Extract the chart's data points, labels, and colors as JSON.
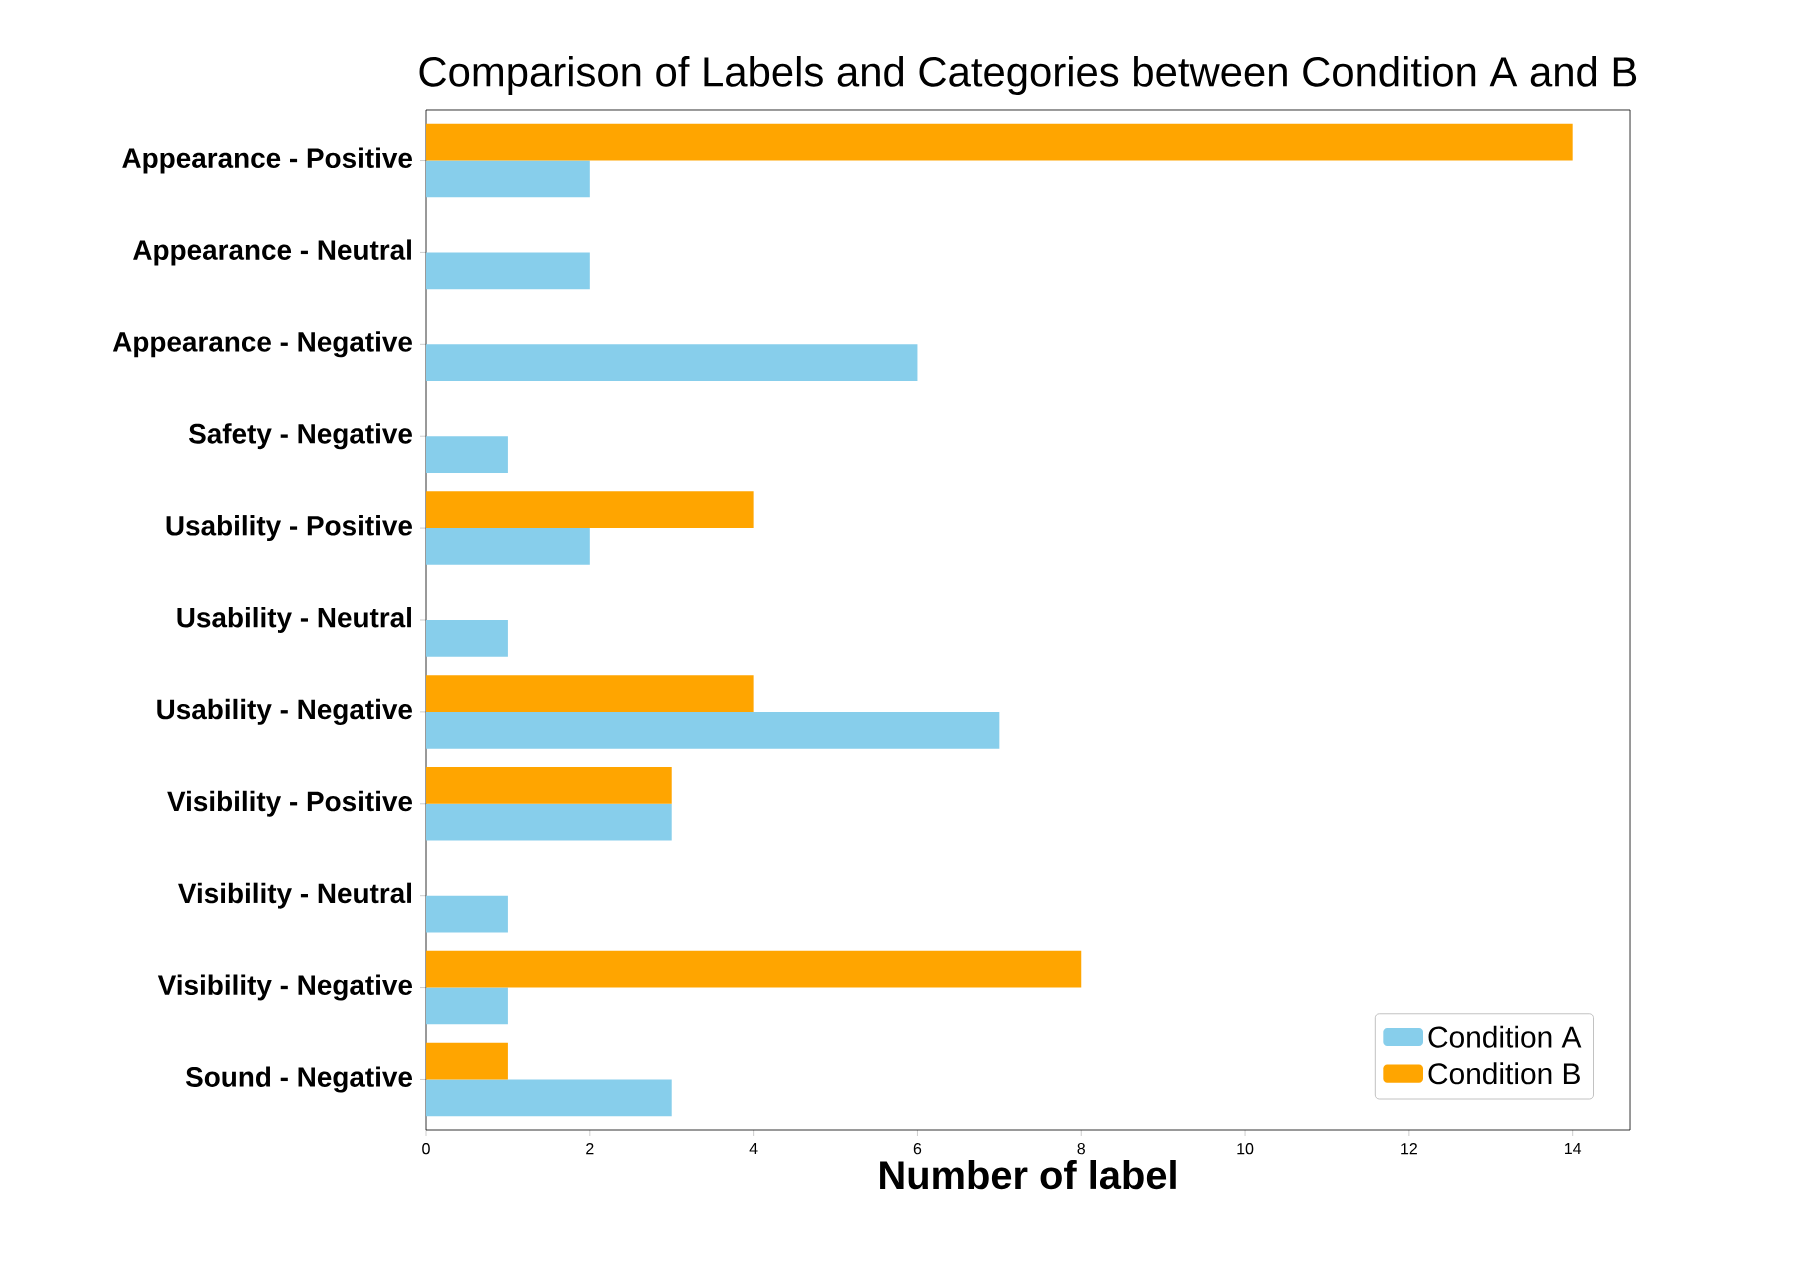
{
  "chart_data": {
    "type": "bar",
    "orientation": "horizontal",
    "title": "Comparison of Labels and Categories between Condition A and B",
    "xlabel": "Number of label",
    "categories": [
      "Appearance - Positive",
      "Appearance - Neutral",
      "Appearance - Negative",
      "Safety - Negative",
      "Usability - Positive",
      "Usability - Neutral",
      "Usability - Negative",
      "Visibility - Positive",
      "Visibility - Neutral",
      "Visibility - Negative",
      "Sound - Negative"
    ],
    "series": [
      {
        "name": "Condition A",
        "color": "#87ceeb",
        "values": [
          2,
          2,
          6,
          1,
          2,
          1,
          7,
          3,
          1,
          1,
          3
        ]
      },
      {
        "name": "Condition B",
        "color": "#ffa500",
        "values": [
          14,
          0,
          0,
          0,
          4,
          0,
          4,
          3,
          0,
          8,
          1
        ]
      }
    ],
    "xlim": [
      0,
      14.7
    ],
    "xticks": [
      0,
      2,
      4,
      6,
      8,
      10,
      12,
      14
    ],
    "legend": "bottom right"
  }
}
